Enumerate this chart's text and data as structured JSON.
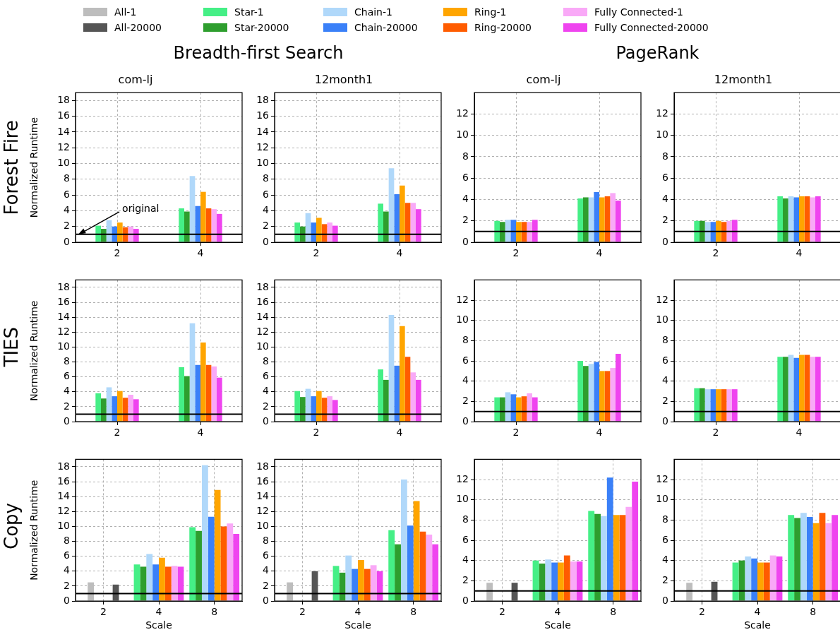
{
  "chart_data": [
    {
      "type": "bar",
      "title": "com-lj",
      "subtitle": "Breadth-first Search",
      "ylabel": "Normalized Runtime",
      "legend": "top",
      "annotations": [
        "Forest Fire"
      ],
      "categories": [
        "2",
        "4"
      ],
      "ylim": [
        0,
        19
      ],
      "yticks": [
        0,
        2,
        4,
        6,
        8,
        10,
        12,
        14,
        16,
        18
      ],
      "grid": true,
      "ref_lines": [
        {
          "axis": "y",
          "value": 1,
          "color": "#000000",
          "label": "original"
        }
      ],
      "series": [
        {
          "name": "All-1",
          "color": "#bdbdbd",
          "values": [
            null,
            null
          ]
        },
        {
          "name": "All-20000",
          "color": "#555555",
          "values": [
            null,
            null
          ]
        },
        {
          "name": "Star-1",
          "color": "#45ef86",
          "values": [
            2.1,
            4.3
          ]
        },
        {
          "name": "Star-20000",
          "color": "#2e9e2e",
          "values": [
            1.7,
            3.9
          ]
        },
        {
          "name": "Chain-1",
          "color": "#b0d8fa",
          "values": [
            2.8,
            8.4
          ]
        },
        {
          "name": "Chain-20000",
          "color": "#3a80f8",
          "values": [
            2.0,
            4.6
          ]
        },
        {
          "name": "Ring-1",
          "color": "#ffa500",
          "values": [
            2.5,
            6.4
          ]
        },
        {
          "name": "Ring-20000",
          "color": "#ff5c00",
          "values": [
            1.9,
            4.3
          ]
        },
        {
          "name": "Fully Connected-1",
          "color": "#f9a9f7",
          "values": [
            2.0,
            4.2
          ]
        },
        {
          "name": "Fully Connected-20000",
          "color": "#ef44ef",
          "values": [
            1.7,
            3.6
          ]
        }
      ]
    },
    {
      "type": "bar",
      "title": "12month1",
      "categories": [
        "2",
        "4"
      ],
      "ylim": [
        0,
        19
      ],
      "yticks": [
        0,
        2,
        4,
        6,
        8,
        10,
        12,
        14,
        16,
        18
      ],
      "grid": true,
      "ref_lines": [
        {
          "axis": "y",
          "value": 1,
          "color": "#000000"
        }
      ],
      "series": [
        {
          "color": "#bdbdbd",
          "values": [
            null,
            null
          ]
        },
        {
          "color": "#555555",
          "values": [
            null,
            null
          ]
        },
        {
          "color": "#45ef86",
          "values": [
            2.5,
            4.9
          ]
        },
        {
          "color": "#2e9e2e",
          "values": [
            2.0,
            3.9
          ]
        },
        {
          "color": "#b0d8fa",
          "values": [
            3.7,
            9.4
          ]
        },
        {
          "color": "#3a80f8",
          "values": [
            2.5,
            6.1
          ]
        },
        {
          "color": "#ffa500",
          "values": [
            3.1,
            7.2
          ]
        },
        {
          "color": "#ff5c00",
          "values": [
            2.3,
            5.0
          ]
        },
        {
          "color": "#f9a9f7",
          "values": [
            2.5,
            5.0
          ]
        },
        {
          "color": "#ef44ef",
          "values": [
            2.1,
            4.2
          ]
        }
      ]
    },
    {
      "type": "bar",
      "title": "com-lj",
      "subtitle": "PageRank",
      "categories": [
        "2",
        "4"
      ],
      "ylim": [
        0,
        14
      ],
      "yticks": [
        0,
        2,
        4,
        6,
        8,
        10,
        12
      ],
      "grid": true,
      "ref_lines": [
        {
          "axis": "y",
          "value": 1,
          "color": "#000000"
        }
      ],
      "series": [
        {
          "color": "#bdbdbd",
          "values": [
            null,
            null
          ]
        },
        {
          "color": "#555555",
          "values": [
            null,
            null
          ]
        },
        {
          "color": "#45ef86",
          "values": [
            2.0,
            4.1
          ]
        },
        {
          "color": "#2e9e2e",
          "values": [
            1.9,
            4.2
          ]
        },
        {
          "color": "#b0d8fa",
          "values": [
            2.1,
            4.2
          ]
        },
        {
          "color": "#3a80f8",
          "values": [
            2.1,
            4.7
          ]
        },
        {
          "color": "#ffa500",
          "values": [
            1.9,
            4.2
          ]
        },
        {
          "color": "#ff5c00",
          "values": [
            1.9,
            4.3
          ]
        },
        {
          "color": "#f9a9f7",
          "values": [
            1.9,
            4.6
          ]
        },
        {
          "color": "#ef44ef",
          "values": [
            2.1,
            3.9
          ]
        }
      ]
    },
    {
      "type": "bar",
      "title": "12month1",
      "categories": [
        "2",
        "4"
      ],
      "ylim": [
        0,
        14
      ],
      "yticks": [
        0,
        2,
        4,
        6,
        8,
        10,
        12
      ],
      "grid": true,
      "ref_lines": [
        {
          "axis": "y",
          "value": 1,
          "color": "#000000"
        }
      ],
      "series": [
        {
          "color": "#bdbdbd",
          "values": [
            null,
            null
          ]
        },
        {
          "color": "#555555",
          "values": [
            null,
            null
          ]
        },
        {
          "color": "#45ef86",
          "values": [
            2.0,
            4.3
          ]
        },
        {
          "color": "#2e9e2e",
          "values": [
            2.0,
            4.1
          ]
        },
        {
          "color": "#b0d8fa",
          "values": [
            1.9,
            4.3
          ]
        },
        {
          "color": "#3a80f8",
          "values": [
            1.9,
            4.2
          ]
        },
        {
          "color": "#ffa500",
          "values": [
            2.0,
            4.3
          ]
        },
        {
          "color": "#ff5c00",
          "values": [
            1.9,
            4.3
          ]
        },
        {
          "color": "#f9a9f7",
          "values": [
            2.0,
            4.2
          ]
        },
        {
          "color": "#ef44ef",
          "values": [
            2.1,
            4.3
          ]
        }
      ]
    },
    {
      "type": "bar",
      "ylabel": "Normalized Runtime",
      "annotations": [
        "TIES"
      ],
      "categories": [
        "2",
        "4"
      ],
      "ylim": [
        0,
        19
      ],
      "yticks": [
        0,
        2,
        4,
        6,
        8,
        10,
        12,
        14,
        16,
        18
      ],
      "grid": true,
      "ref_lines": [
        {
          "axis": "y",
          "value": 1,
          "color": "#000000"
        }
      ],
      "series": [
        {
          "color": "#bdbdbd",
          "values": [
            null,
            null
          ]
        },
        {
          "color": "#555555",
          "values": [
            null,
            null
          ]
        },
        {
          "color": "#45ef86",
          "values": [
            3.8,
            7.3
          ]
        },
        {
          "color": "#2e9e2e",
          "values": [
            3.1,
            6.1
          ]
        },
        {
          "color": "#b0d8fa",
          "values": [
            4.6,
            13.2
          ]
        },
        {
          "color": "#3a80f8",
          "values": [
            3.4,
            7.6
          ]
        },
        {
          "color": "#ffa500",
          "values": [
            4.1,
            10.6
          ]
        },
        {
          "color": "#ff5c00",
          "values": [
            3.2,
            7.6
          ]
        },
        {
          "color": "#f9a9f7",
          "values": [
            3.6,
            7.4
          ]
        },
        {
          "color": "#ef44ef",
          "values": [
            3.0,
            5.9
          ]
        }
      ]
    },
    {
      "type": "bar",
      "categories": [
        "2",
        "4"
      ],
      "ylim": [
        0,
        19
      ],
      "yticks": [
        0,
        2,
        4,
        6,
        8,
        10,
        12,
        14,
        16,
        18
      ],
      "grid": true,
      "ref_lines": [
        {
          "axis": "y",
          "value": 1,
          "color": "#000000"
        }
      ],
      "series": [
        {
          "color": "#bdbdbd",
          "values": [
            null,
            null
          ]
        },
        {
          "color": "#555555",
          "values": [
            null,
            null
          ]
        },
        {
          "color": "#45ef86",
          "values": [
            4.1,
            7.0
          ]
        },
        {
          "color": "#2e9e2e",
          "values": [
            3.3,
            5.6
          ]
        },
        {
          "color": "#b0d8fa",
          "values": [
            4.4,
            14.3
          ]
        },
        {
          "color": "#3a80f8",
          "values": [
            3.4,
            7.5
          ]
        },
        {
          "color": "#ffa500",
          "values": [
            4.1,
            12.8
          ]
        },
        {
          "color": "#ff5c00",
          "values": [
            3.2,
            8.7
          ]
        },
        {
          "color": "#f9a9f7",
          "values": [
            3.4,
            6.6
          ]
        },
        {
          "color": "#ef44ef",
          "values": [
            2.9,
            5.6
          ]
        }
      ]
    },
    {
      "type": "bar",
      "categories": [
        "2",
        "4"
      ],
      "ylim": [
        0,
        14
      ],
      "yticks": [
        0,
        2,
        4,
        6,
        8,
        10,
        12
      ],
      "grid": true,
      "ref_lines": [
        {
          "axis": "y",
          "value": 1,
          "color": "#000000"
        }
      ],
      "series": [
        {
          "color": "#bdbdbd",
          "values": [
            null,
            null
          ]
        },
        {
          "color": "#555555",
          "values": [
            null,
            null
          ]
        },
        {
          "color": "#45ef86",
          "values": [
            2.4,
            6.0
          ]
        },
        {
          "color": "#2e9e2e",
          "values": [
            2.4,
            5.5
          ]
        },
        {
          "color": "#b0d8fa",
          "values": [
            2.9,
            5.7
          ]
        },
        {
          "color": "#3a80f8",
          "values": [
            2.7,
            5.9
          ]
        },
        {
          "color": "#ffa500",
          "values": [
            2.4,
            5.0
          ]
        },
        {
          "color": "#ff5c00",
          "values": [
            2.5,
            5.0
          ]
        },
        {
          "color": "#f9a9f7",
          "values": [
            2.8,
            5.3
          ]
        },
        {
          "color": "#ef44ef",
          "values": [
            2.4,
            6.7
          ]
        }
      ]
    },
    {
      "type": "bar",
      "categories": [
        "2",
        "4"
      ],
      "ylim": [
        0,
        14
      ],
      "yticks": [
        0,
        2,
        4,
        6,
        8,
        10,
        12
      ],
      "grid": true,
      "ref_lines": [
        {
          "axis": "y",
          "value": 1,
          "color": "#000000"
        }
      ],
      "series": [
        {
          "color": "#bdbdbd",
          "values": [
            null,
            null
          ]
        },
        {
          "color": "#555555",
          "values": [
            null,
            null
          ]
        },
        {
          "color": "#45ef86",
          "values": [
            3.3,
            6.4
          ]
        },
        {
          "color": "#2e9e2e",
          "values": [
            3.3,
            6.4
          ]
        },
        {
          "color": "#b0d8fa",
          "values": [
            3.2,
            6.6
          ]
        },
        {
          "color": "#3a80f8",
          "values": [
            3.2,
            6.3
          ]
        },
        {
          "color": "#ffa500",
          "values": [
            3.2,
            6.6
          ]
        },
        {
          "color": "#ff5c00",
          "values": [
            3.2,
            6.6
          ]
        },
        {
          "color": "#f9a9f7",
          "values": [
            3.2,
            6.4
          ]
        },
        {
          "color": "#ef44ef",
          "values": [
            3.2,
            6.4
          ]
        }
      ]
    },
    {
      "type": "bar",
      "xlabel": "Scale",
      "ylabel": "Normalized Runtime",
      "annotations": [
        "Copy"
      ],
      "categories": [
        "2",
        "4",
        "8"
      ],
      "ylim": [
        0,
        19
      ],
      "yticks": [
        0,
        2,
        4,
        6,
        8,
        10,
        12,
        14,
        16,
        18
      ],
      "grid": true,
      "ref_lines": [
        {
          "axis": "y",
          "value": 1,
          "color": "#000000"
        }
      ],
      "series": [
        {
          "color": "#bdbdbd",
          "values": [
            2.5,
            null,
            null
          ]
        },
        {
          "color": "#555555",
          "values": [
            2.2,
            null,
            null
          ]
        },
        {
          "color": "#45ef86",
          "values": [
            null,
            4.9,
            9.9
          ]
        },
        {
          "color": "#2e9e2e",
          "values": [
            null,
            4.6,
            9.4
          ]
        },
        {
          "color": "#b0d8fa",
          "values": [
            null,
            6.3,
            18.2
          ]
        },
        {
          "color": "#3a80f8",
          "values": [
            null,
            4.9,
            11.3
          ]
        },
        {
          "color": "#ffa500",
          "values": [
            null,
            5.8,
            14.9
          ]
        },
        {
          "color": "#ff5c00",
          "values": [
            null,
            4.6,
            10.0
          ]
        },
        {
          "color": "#f9a9f7",
          "values": [
            null,
            4.7,
            10.4
          ]
        },
        {
          "color": "#ef44ef",
          "values": [
            null,
            4.6,
            9.0
          ]
        }
      ]
    },
    {
      "type": "bar",
      "xlabel": "Scale",
      "categories": [
        "2",
        "4",
        "8"
      ],
      "ylim": [
        0,
        19
      ],
      "yticks": [
        0,
        2,
        4,
        6,
        8,
        10,
        12,
        14,
        16,
        18
      ],
      "grid": true,
      "ref_lines": [
        {
          "axis": "y",
          "value": 1,
          "color": "#000000"
        }
      ],
      "series": [
        {
          "color": "#bdbdbd",
          "values": [
            2.5,
            null,
            null
          ]
        },
        {
          "color": "#555555",
          "values": [
            4.0,
            null,
            null
          ]
        },
        {
          "color": "#45ef86",
          "values": [
            null,
            4.7,
            9.5
          ]
        },
        {
          "color": "#2e9e2e",
          "values": [
            null,
            3.8,
            7.6
          ]
        },
        {
          "color": "#b0d8fa",
          "values": [
            null,
            6.1,
            16.3
          ]
        },
        {
          "color": "#3a80f8",
          "values": [
            null,
            4.3,
            10.1
          ]
        },
        {
          "color": "#ffa500",
          "values": [
            null,
            5.5,
            13.4
          ]
        },
        {
          "color": "#ff5c00",
          "values": [
            null,
            4.3,
            9.3
          ]
        },
        {
          "color": "#f9a9f7",
          "values": [
            null,
            4.8,
            8.9
          ]
        },
        {
          "color": "#ef44ef",
          "values": [
            null,
            4.0,
            7.6
          ]
        }
      ]
    },
    {
      "type": "bar",
      "xlabel": "Scale",
      "categories": [
        "2",
        "4",
        "8"
      ],
      "ylim": [
        0,
        14
      ],
      "yticks": [
        0,
        2,
        4,
        6,
        8,
        10,
        12
      ],
      "grid": true,
      "ref_lines": [
        {
          "axis": "y",
          "value": 1,
          "color": "#000000"
        }
      ],
      "series": [
        {
          "color": "#bdbdbd",
          "values": [
            1.8,
            null,
            null
          ]
        },
        {
          "color": "#555555",
          "values": [
            1.8,
            null,
            null
          ]
        },
        {
          "color": "#45ef86",
          "values": [
            null,
            4.0,
            8.9
          ]
        },
        {
          "color": "#2e9e2e",
          "values": [
            null,
            3.7,
            8.6
          ]
        },
        {
          "color": "#b0d8fa",
          "values": [
            null,
            4.1,
            8.4
          ]
        },
        {
          "color": "#3a80f8",
          "values": [
            null,
            3.8,
            12.2
          ]
        },
        {
          "color": "#ffa500",
          "values": [
            null,
            3.8,
            8.5
          ]
        },
        {
          "color": "#ff5c00",
          "values": [
            null,
            4.5,
            8.5
          ]
        },
        {
          "color": "#f9a9f7",
          "values": [
            null,
            3.9,
            9.3
          ]
        },
        {
          "color": "#ef44ef",
          "values": [
            null,
            3.9,
            11.8
          ]
        }
      ]
    },
    {
      "type": "bar",
      "xlabel": "Scale",
      "categories": [
        "2",
        "4",
        "8"
      ],
      "ylim": [
        0,
        14
      ],
      "yticks": [
        0,
        2,
        4,
        6,
        8,
        10,
        12
      ],
      "grid": true,
      "ref_lines": [
        {
          "axis": "y",
          "value": 1,
          "color": "#000000"
        }
      ],
      "series": [
        {
          "color": "#bdbdbd",
          "values": [
            1.8,
            null,
            null
          ]
        },
        {
          "color": "#555555",
          "values": [
            1.9,
            null,
            null
          ]
        },
        {
          "color": "#45ef86",
          "values": [
            null,
            3.8,
            8.5
          ]
        },
        {
          "color": "#2e9e2e",
          "values": [
            null,
            4.0,
            8.2
          ]
        },
        {
          "color": "#b0d8fa",
          "values": [
            null,
            4.4,
            8.7
          ]
        },
        {
          "color": "#3a80f8",
          "values": [
            null,
            4.2,
            8.3
          ]
        },
        {
          "color": "#ffa500",
          "values": [
            null,
            3.8,
            7.7
          ]
        },
        {
          "color": "#ff5c00",
          "values": [
            null,
            3.8,
            8.7
          ]
        },
        {
          "color": "#f9a9f7",
          "values": [
            null,
            4.5,
            7.7
          ]
        },
        {
          "color": "#ef44ef",
          "values": [
            null,
            4.4,
            8.5
          ]
        }
      ]
    }
  ]
}
